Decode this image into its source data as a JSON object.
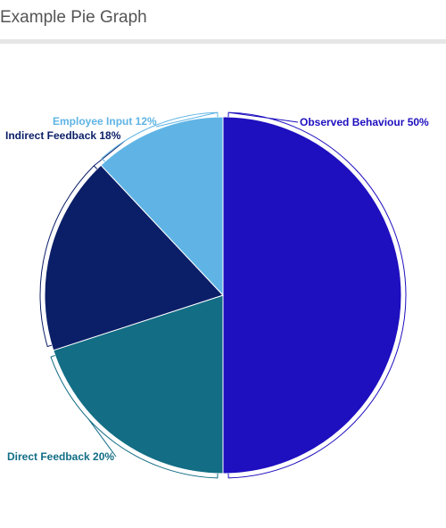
{
  "header": {
    "title": "Example Pie Graph"
  },
  "chart_data": {
    "type": "pie",
    "title": "",
    "categories": [
      "Observed Behaviour",
      "Direct Feedback",
      "Indirect Feedback",
      "Employee Input"
    ],
    "values": [
      50,
      20,
      18,
      12
    ],
    "labels": [
      "Observed Behaviour 50%",
      "Direct Feedback 20%",
      "Indirect Feedback 18%",
      "Employee Input 12%"
    ],
    "colors": [
      "#1e0fbf",
      "#126d85",
      "#0b1f68",
      "#5fb4e5"
    ],
    "label_colors": [
      "#1e0fbf",
      "#126d85",
      "#0b1f68",
      "#5fb4e5"
    ],
    "start": "12 o'clock",
    "direction": "clockwise",
    "legend": "none"
  }
}
